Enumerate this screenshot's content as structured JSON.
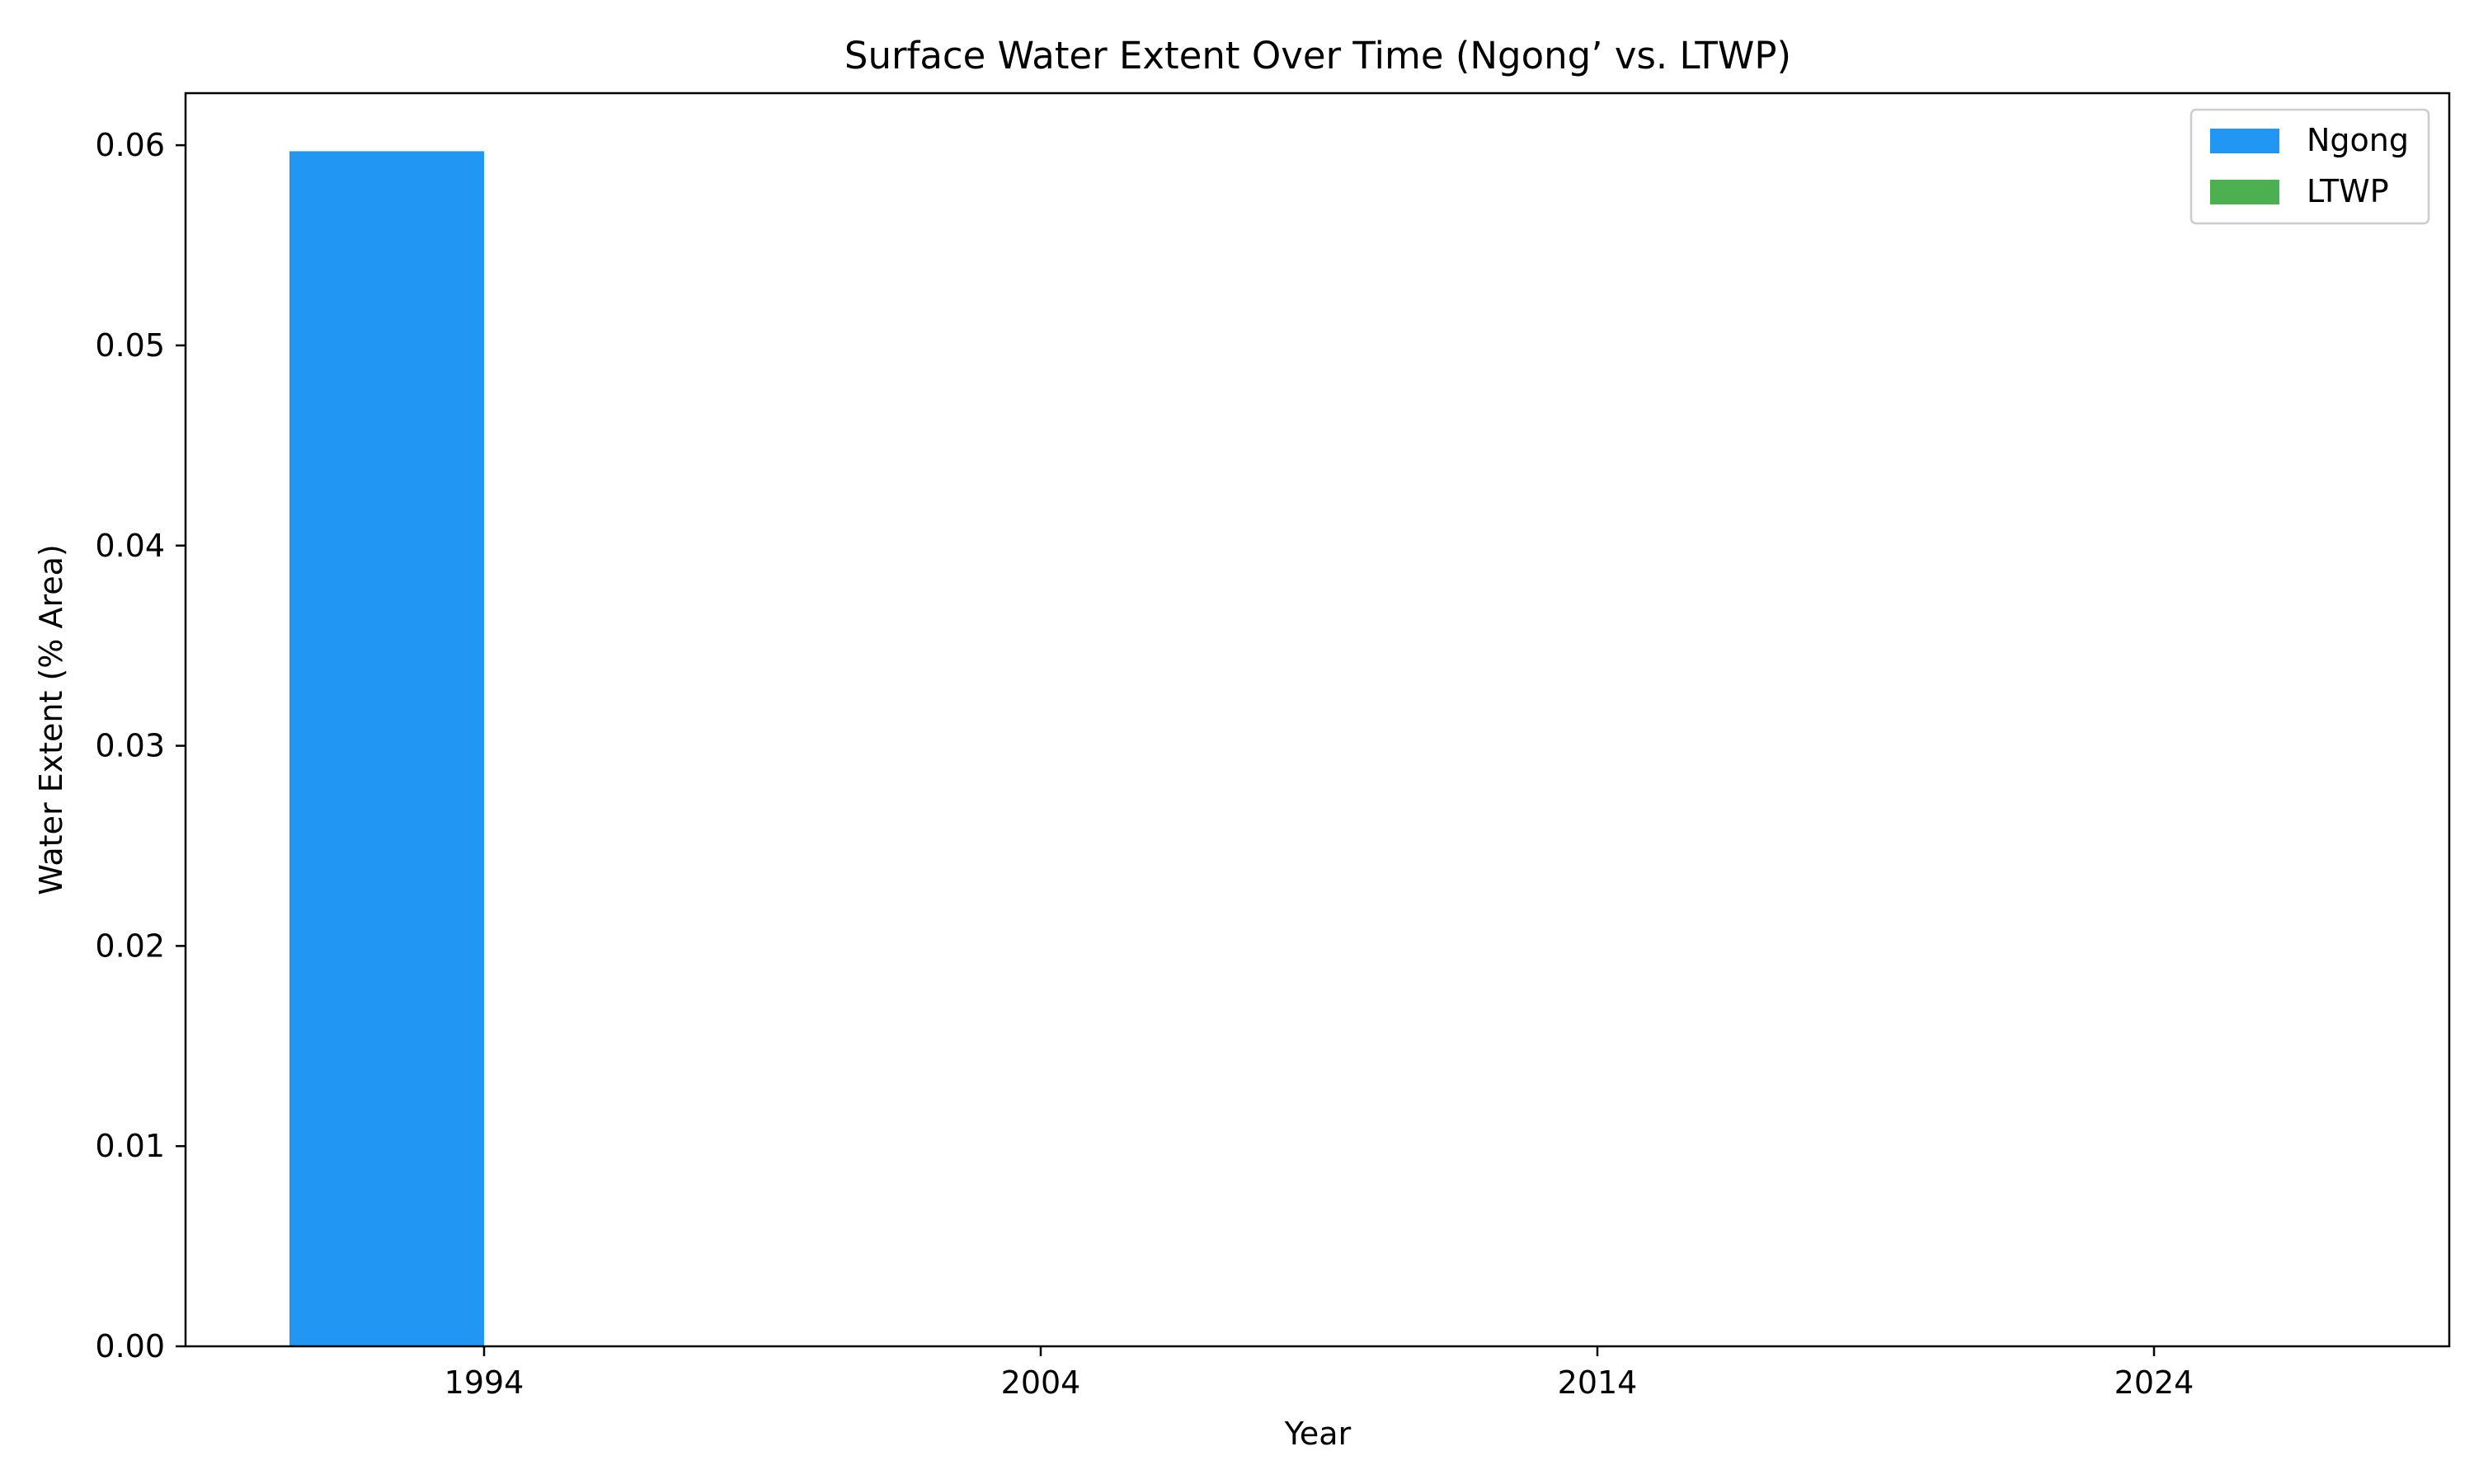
{
  "chart_data": {
    "type": "bar",
    "title": "Surface Water Extent Over Time (Ngong’ vs. LTWP)",
    "xlabel": "Year",
    "ylabel": "Water Extent (% Area)",
    "categories": [
      "1994",
      "2004",
      "2014",
      "2024"
    ],
    "ylim": [
      0,
      0.0626
    ],
    "yticks": [
      "0.00",
      "0.01",
      "0.02",
      "0.03",
      "0.04",
      "0.05",
      "0.06"
    ],
    "series": [
      {
        "name": "Ngong",
        "color": "#2196f3",
        "values": [
          0.0597,
          0,
          0,
          0
        ]
      },
      {
        "name": "LTWP",
        "color": "#4caf50",
        "values": [
          0,
          0,
          0,
          0
        ]
      }
    ],
    "legend": "top-right",
    "grid": false
  }
}
